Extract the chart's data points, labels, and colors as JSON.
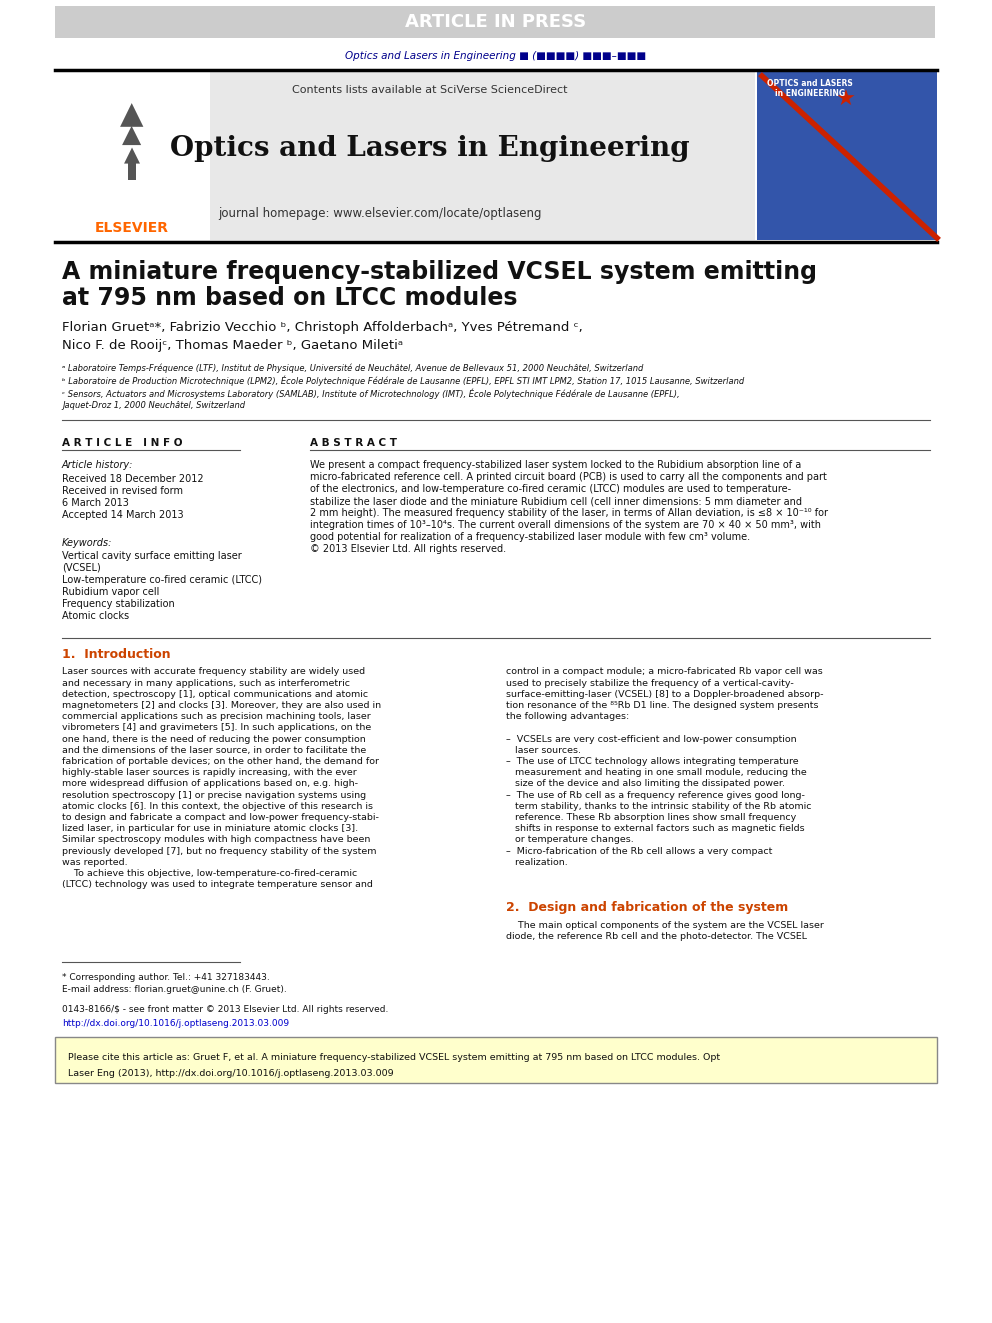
{
  "page_bg": "#ffffff",
  "header_bar_color": "#cccccc",
  "header_bar_text": "ARTICLE IN PRESS",
  "header_bar_text_color": "#ffffff",
  "journal_ref_text": "Optics and Lasers in Engineering ■ (■■■■) ■■■–■■■",
  "journal_ref_color": "#00008B",
  "header_bg": "#e8e8e8",
  "header_contents_text": "Contents lists available at ",
  "header_sciverse": "SciVerse ScienceDirect",
  "header_sciverse_color": "#ff6600",
  "journal_title": "Optics and Lasers in Engineering",
  "journal_homepage_prefix": "journal homepage: ",
  "journal_homepage_url": "www.elsevier.com/locate/optlaseng",
  "journal_homepage_url_color": "#0000cc",
  "elsevier_color": "#ff6600",
  "article_title_line1": "A miniature frequency-stabilized VCSEL system emitting",
  "article_title_line2": "at 795 nm based on LTCC modules",
  "authors": "Florian Gruetᵃ*, Fabrizio Vecchio ᵇ, Christoph Affolderbachᵃ, Yves Pétremand ᶜ,",
  "authors2": "Nico F. de Rooijᶜ, Thomas Maeder ᵇ, Gaetano Miletiᵃ",
  "affil_a": "ᵃ Laboratoire Temps-Fréquence (LTF), Institut de Physique, Université de Neuchâtel, Avenue de Bellevaux 51, 2000 Neuchâtel, Switzerland",
  "affil_b": "ᵇ Laboratoire de Production Microtechnique (LPM2), École Polytechnique Fédérale de Lausanne (EPFL), EPFL STI IMT LPM2, Station 17, 1015 Lausanne, Switzerland",
  "affil_c": "ᶜ Sensors, Actuators and Microsystems Laboratory (SAMLAB), Institute of Microtechnology (IMT), École Polytechnique Fédérale de Lausanne (EPFL),",
  "affil_c2": "Jaquet-Droz 1, 2000 Neuchâtel, Switzerland",
  "section_article_info": "A R T I C L E   I N F O",
  "section_abstract": "A B S T R A C T",
  "article_history_label": "Article history:",
  "received1": "Received 18 December 2012",
  "received2": "Received in revised form",
  "received2b": "6 March 2013",
  "accepted": "Accepted 14 March 2013",
  "keywords_label": "Keywords:",
  "keyword1": "Vertical cavity surface emitting laser",
  "keyword2": "(VCSEL)",
  "keyword3": "Low-temperature co-fired ceramic (LTCC)",
  "keyword4": "Rubidium vapor cell",
  "keyword5": "Frequency stabilization",
  "keyword6": "Atomic clocks",
  "abstract_text": "We present a compact frequency-stabilized laser system locked to the Rubidium absorption line of a\nmicro-fabricated reference cell. A printed circuit board (PCB) is used to carry all the components and part\nof the electronics, and low-temperature co-fired ceramic (LTCC) modules are used to temperature-\nstabilize the laser diode and the miniature Rubidium cell (cell inner dimensions: 5 mm diameter and\n2 mm height). The measured frequency stability of the laser, in terms of Allan deviation, is ≤8 × 10⁻¹⁰ for\nintegration times of 10³–10⁴s. The current overall dimensions of the system are 70 × 40 × 50 mm³, with\ngood potential for realization of a frequency-stabilized laser module with few cm³ volume.\n© 2013 Elsevier Ltd. All rights reserved.",
  "section1_title": "1.  Introduction",
  "section1_col1": "Laser sources with accurate frequency stability are widely used\nand necessary in many applications, such as interferometric\ndetection, spectroscopy [1], optical communications and atomic\nmagnetometers [2] and clocks [3]. Moreover, they are also used in\ncommercial applications such as precision machining tools, laser\nvibrometers [4] and gravimeters [5]. In such applications, on the\none hand, there is the need of reducing the power consumption\nand the dimensions of the laser source, in order to facilitate the\nfabrication of portable devices; on the other hand, the demand for\nhighly-stable laser sources is rapidly increasing, with the ever\nmore widespread diffusion of applications based on, e.g. high-\nresolution spectroscopy [1] or precise navigation systems using\natomic clocks [6]. In this context, the objective of this research is\nto design and fabricate a compact and low-power frequency-stabi-\nlized laser, in particular for use in miniature atomic clocks [3].\nSimilar spectroscopy modules with high compactness have been\npreviously developed [7], but no frequency stability of the system\nwas reported.\n    To achieve this objective, low-temperature-co-fired-ceramic\n(LTCC) technology was used to integrate temperature sensor and",
  "section1_col2": "control in a compact module; a micro-fabricated Rb vapor cell was\nused to precisely stabilize the frequency of a vertical-cavity-\nsurface-emitting-laser (VCSEL) [8] to a Doppler-broadened absorp-\ntion resonance of the ⁸⁵Rb D1 line. The designed system presents\nthe following advantages:\n\n–  VCSELs are very cost-efficient and low-power consumption\n   laser sources.\n–  The use of LTCC technology allows integrating temperature\n   measurement and heating in one small module, reducing the\n   size of the device and also limiting the dissipated power.\n–  The use of Rb cell as a frequency reference gives good long-\n   term stability, thanks to the intrinsic stability of the Rb atomic\n   reference. These Rb absorption lines show small frequency\n   shifts in response to external factors such as magnetic fields\n   or temperature changes.\n–  Micro-fabrication of the Rb cell allows a very compact\n   realization.",
  "section2_title": "2.  Design and fabrication of the system",
  "section2_text": "    The main optical components of the system are the VCSEL laser\ndiode, the reference Rb cell and the photo-detector. The VCSEL",
  "footnote_corresponding": "* Corresponding author. Tel.: +41 327183443.",
  "footnote_email": "E-mail address: florian.gruet@unine.ch (F. Gruet).",
  "footer_issn": "0143-8166/$ - see front matter © 2013 Elsevier Ltd. All rights reserved.",
  "footer_doi": "http://dx.doi.org/10.1016/j.optlaseng.2013.03.009",
  "citation_box": "Please cite this article as: Gruet F, et al. A miniature frequency-stabilized VCSEL system emitting at 795 nm based on LTCC modules. Opt\nLaser Eng (2013), http://dx.doi.org/10.1016/j.optlaseng.2013.03.009",
  "citation_box_bg": "#ffffcc",
  "citation_url_color": "#0000cc"
}
